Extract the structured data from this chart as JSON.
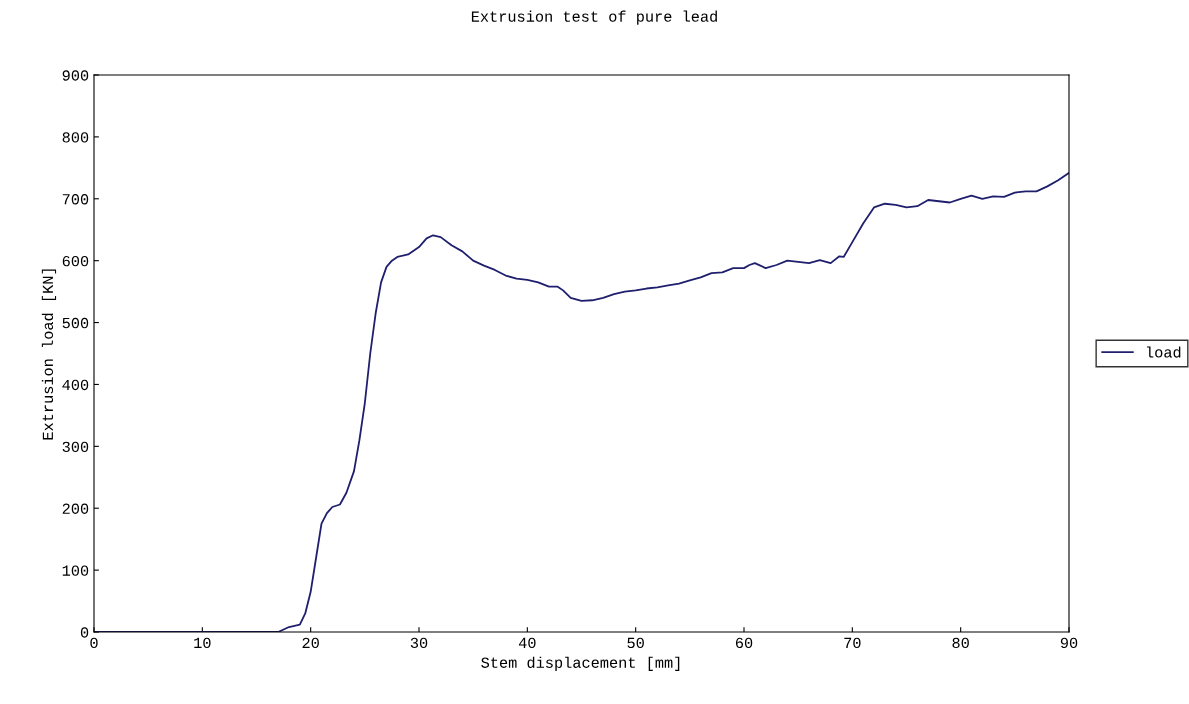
{
  "chart_data": {
    "type": "line",
    "title": "Extrusion test of pure lead",
    "xlabel": "Stem displacement [mm]",
    "ylabel": "Extrusion load [KN]",
    "xlim": [
      0,
      90
    ],
    "xticks": [
      0,
      10,
      20,
      30,
      40,
      50,
      60,
      70,
      80,
      90
    ],
    "ylim": [
      0,
      900
    ],
    "yticks": [
      0,
      100,
      200,
      300,
      400,
      500,
      600,
      700,
      800,
      900
    ],
    "grid": false,
    "legend": "right",
    "marker": "none",
    "line_style": "solid",
    "series": [
      {
        "name": "load",
        "color": "#1f1f6e",
        "x": [
          0,
          17,
          18,
          19,
          19.5,
          20,
          20.5,
          21,
          21.5,
          22,
          22.7,
          23.3,
          24,
          24.5,
          25,
          25.5,
          26,
          26.5,
          27,
          27.5,
          28,
          29,
          30,
          30.7,
          31.3,
          32,
          33,
          34,
          35,
          36,
          37,
          38,
          39,
          40,
          41,
          42,
          42.8,
          43.3,
          44,
          45,
          46,
          47,
          48,
          49,
          50,
          51,
          52,
          53,
          54,
          55,
          56,
          57,
          58,
          59,
          60,
          60.5,
          61,
          62,
          63,
          64,
          65,
          66,
          67,
          68,
          68.8,
          69.2,
          70,
          71,
          72,
          73,
          74,
          75,
          76,
          77,
          78,
          79,
          80,
          81,
          82,
          83,
          84,
          85,
          86,
          87,
          88,
          89,
          90
        ],
        "values": [
          0,
          0,
          8,
          12,
          30,
          65,
          120,
          175,
          192,
          202,
          206,
          225,
          260,
          310,
          370,
          450,
          515,
          565,
          590,
          600,
          606,
          610,
          622,
          636,
          641,
          638,
          625,
          615,
          600,
          592,
          585,
          576,
          571,
          569,
          565,
          558,
          558,
          552,
          540,
          535,
          536,
          540,
          546,
          550,
          552,
          555,
          557,
          560,
          563,
          568,
          573,
          580,
          581,
          588,
          588,
          593,
          596,
          588,
          593,
          600,
          598,
          596,
          601,
          596,
          607,
          606,
          630,
          660,
          686,
          692,
          690,
          686,
          688,
          698,
          696,
          694,
          700,
          705,
          700,
          704,
          703,
          710,
          712,
          712,
          720,
          730,
          742
        ]
      }
    ]
  }
}
